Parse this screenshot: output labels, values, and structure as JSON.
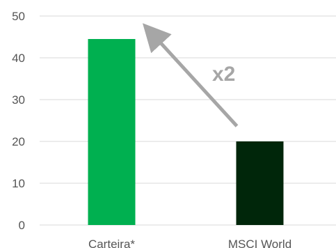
{
  "chart_data": {
    "type": "bar",
    "title": "",
    "xlabel": "",
    "ylabel": "",
    "categories": [
      "Carteira*",
      "MSCI World"
    ],
    "values": [
      44.5,
      20
    ],
    "bar_colors": [
      "#00b050",
      "#00260a"
    ],
    "ylim": [
      0,
      50
    ],
    "yticks": [
      0,
      10,
      20,
      30,
      40,
      50
    ],
    "grid": true,
    "legend": "none",
    "annotation": {
      "text": "x2",
      "color": "#a6a6a6",
      "arrow_from": "MSCI World",
      "arrow_to": "Carteira*"
    }
  }
}
